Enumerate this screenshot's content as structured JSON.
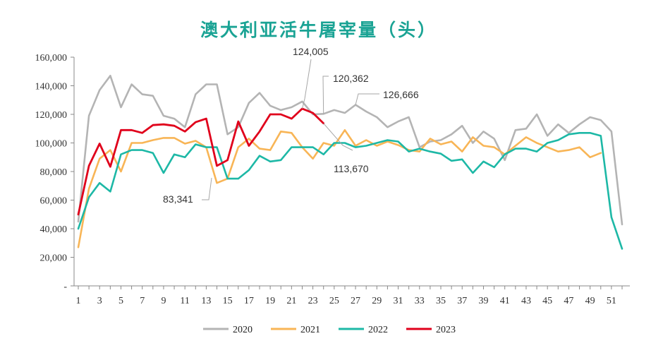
{
  "chart_data": {
    "type": "line",
    "title": "澳大利亚活牛屠宰量（头）",
    "xlabel": "",
    "ylabel": "",
    "x": [
      1,
      2,
      3,
      4,
      5,
      6,
      7,
      8,
      9,
      10,
      11,
      12,
      13,
      14,
      15,
      16,
      17,
      18,
      19,
      20,
      21,
      22,
      23,
      24,
      25,
      26,
      27,
      28,
      29,
      30,
      31,
      32,
      33,
      34,
      35,
      36,
      37,
      38,
      39,
      40,
      41,
      42,
      43,
      44,
      45,
      46,
      47,
      48,
      49,
      50,
      51,
      52
    ],
    "x_tick_labels": [
      "1",
      "3",
      "5",
      "7",
      "9",
      "11",
      "13",
      "15",
      "17",
      "19",
      "21",
      "23",
      "25",
      "27",
      "29",
      "31",
      "33",
      "35",
      "37",
      "39",
      "41",
      "43",
      "45",
      "47",
      "49",
      "51"
    ],
    "x_tick_values": [
      1,
      3,
      5,
      7,
      9,
      11,
      13,
      15,
      17,
      19,
      21,
      23,
      25,
      27,
      29,
      31,
      33,
      35,
      37,
      39,
      41,
      43,
      45,
      47,
      49,
      51
    ],
    "y_tick_values": [
      0,
      20000,
      40000,
      60000,
      80000,
      100000,
      120000,
      140000,
      160000
    ],
    "y_tick_labels": [
      "-",
      "20,000",
      "40,000",
      "60,000",
      "80,000",
      "100,000",
      "120,000",
      "140,000",
      "160,000"
    ],
    "ylim": [
      0,
      160000
    ],
    "grid": false,
    "legend_position": "bottom",
    "series": [
      {
        "name": "2020",
        "color": "#b4b4b4",
        "values": [
          45000,
          119000,
          137000,
          147000,
          125000,
          141000,
          134000,
          133000,
          119000,
          117000,
          111000,
          134000,
          141000,
          141000,
          106000,
          111000,
          128000,
          135000,
          126000,
          123000,
          125000,
          129000,
          120000,
          120362,
          123000,
          121000,
          126666,
          122000,
          118000,
          111000,
          115000,
          118000,
          97000,
          101000,
          102000,
          106000,
          112000,
          100000,
          108000,
          103000,
          88000,
          109000,
          110000,
          120000,
          105000,
          113000,
          107000,
          113000,
          118000,
          116000,
          108000,
          43000
        ]
      },
      {
        "name": "2021",
        "color": "#f8b556",
        "values": [
          27000,
          68000,
          89000,
          95000,
          80000,
          100000,
          100000,
          102000,
          103500,
          103500,
          99500,
          101500,
          97000,
          72000,
          75000,
          97000,
          103000,
          96000,
          95000,
          108000,
          107000,
          97000,
          89000,
          100000,
          98000,
          109000,
          98000,
          102000,
          98000,
          101000,
          98500,
          95000,
          94000,
          103000,
          99000,
          101000,
          94000,
          104000,
          98000,
          97000,
          92000,
          98000,
          104000,
          100000,
          97000,
          94000,
          95000,
          97000,
          90000,
          93000,
          null,
          null
        ]
      },
      {
        "name": "2022",
        "color": "#1db8a6",
        "values": [
          40000,
          62000,
          72000,
          66000,
          92000,
          95000,
          95000,
          93000,
          79000,
          92000,
          90000,
          99000,
          97000,
          97000,
          75000,
          75000,
          81000,
          91000,
          87000,
          88000,
          97000,
          97000,
          97000,
          92000,
          100000,
          100000,
          97000,
          98000,
          100000,
          102000,
          101000,
          94000,
          96000,
          94000,
          92500,
          87500,
          88500,
          79000,
          87000,
          83000,
          92000,
          96000,
          96000,
          94000,
          100000,
          102000,
          106000,
          107000,
          107000,
          105000,
          48000,
          26000
        ]
      },
      {
        "name": "2023",
        "color": "#e0001b",
        "values": [
          50000,
          84000,
          99500,
          83341,
          109000,
          109000,
          107000,
          112500,
          113000,
          112000,
          108000,
          114500,
          117000,
          84000,
          88000,
          115000,
          98000,
          108000,
          120000,
          120000,
          117000,
          124005,
          121000,
          113670,
          null,
          null,
          null,
          null,
          null,
          null,
          null,
          null,
          null,
          null,
          null,
          null,
          null,
          null,
          null,
          null,
          null,
          null,
          null,
          null,
          null,
          null,
          null,
          null,
          null,
          null,
          null,
          null
        ]
      }
    ],
    "annotations": [
      {
        "text": "124,005"
      },
      {
        "text": "120,362"
      },
      {
        "text": "126,666"
      },
      {
        "text": "113,670"
      },
      {
        "text": "83,341"
      }
    ]
  }
}
